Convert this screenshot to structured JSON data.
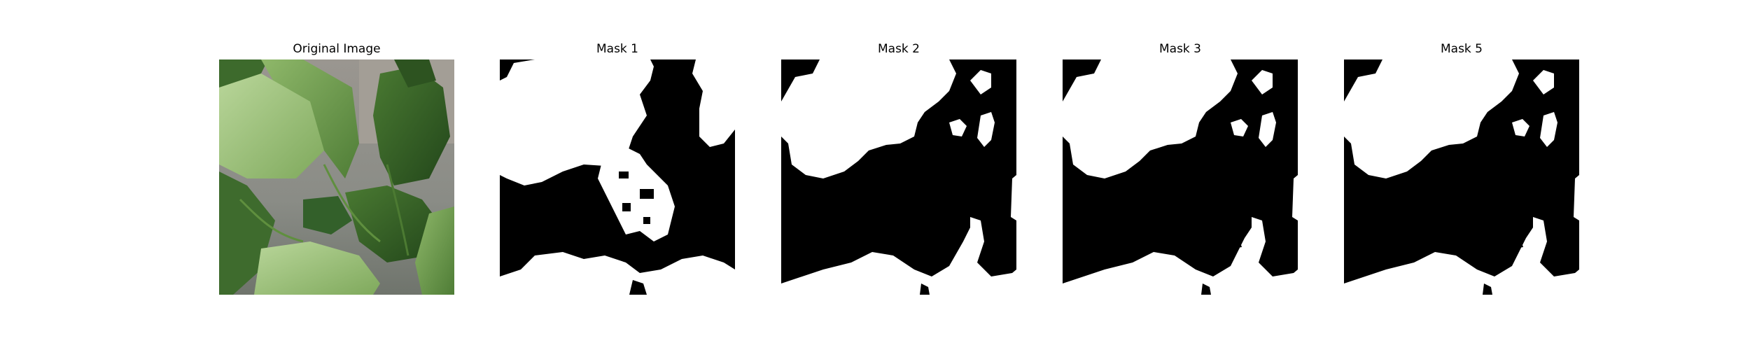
{
  "figure": {
    "panels": [
      {
        "title": "Original Image",
        "kind": "photo",
        "description_icon": "plant-leaves-photo"
      },
      {
        "title": "Mask 1",
        "kind": "mask"
      },
      {
        "title": "Mask 2",
        "kind": "mask"
      },
      {
        "title": "Mask 3",
        "kind": "mask"
      },
      {
        "title": "Mask 5",
        "kind": "mask"
      }
    ],
    "colors": {
      "mask_foreground": "#ffffff",
      "mask_background": "#000000",
      "leaf_light": "#a9c98a",
      "leaf_mid": "#6f9b4e",
      "leaf_dark": "#2f5a24",
      "background_gray": "#8d8f89"
    }
  }
}
